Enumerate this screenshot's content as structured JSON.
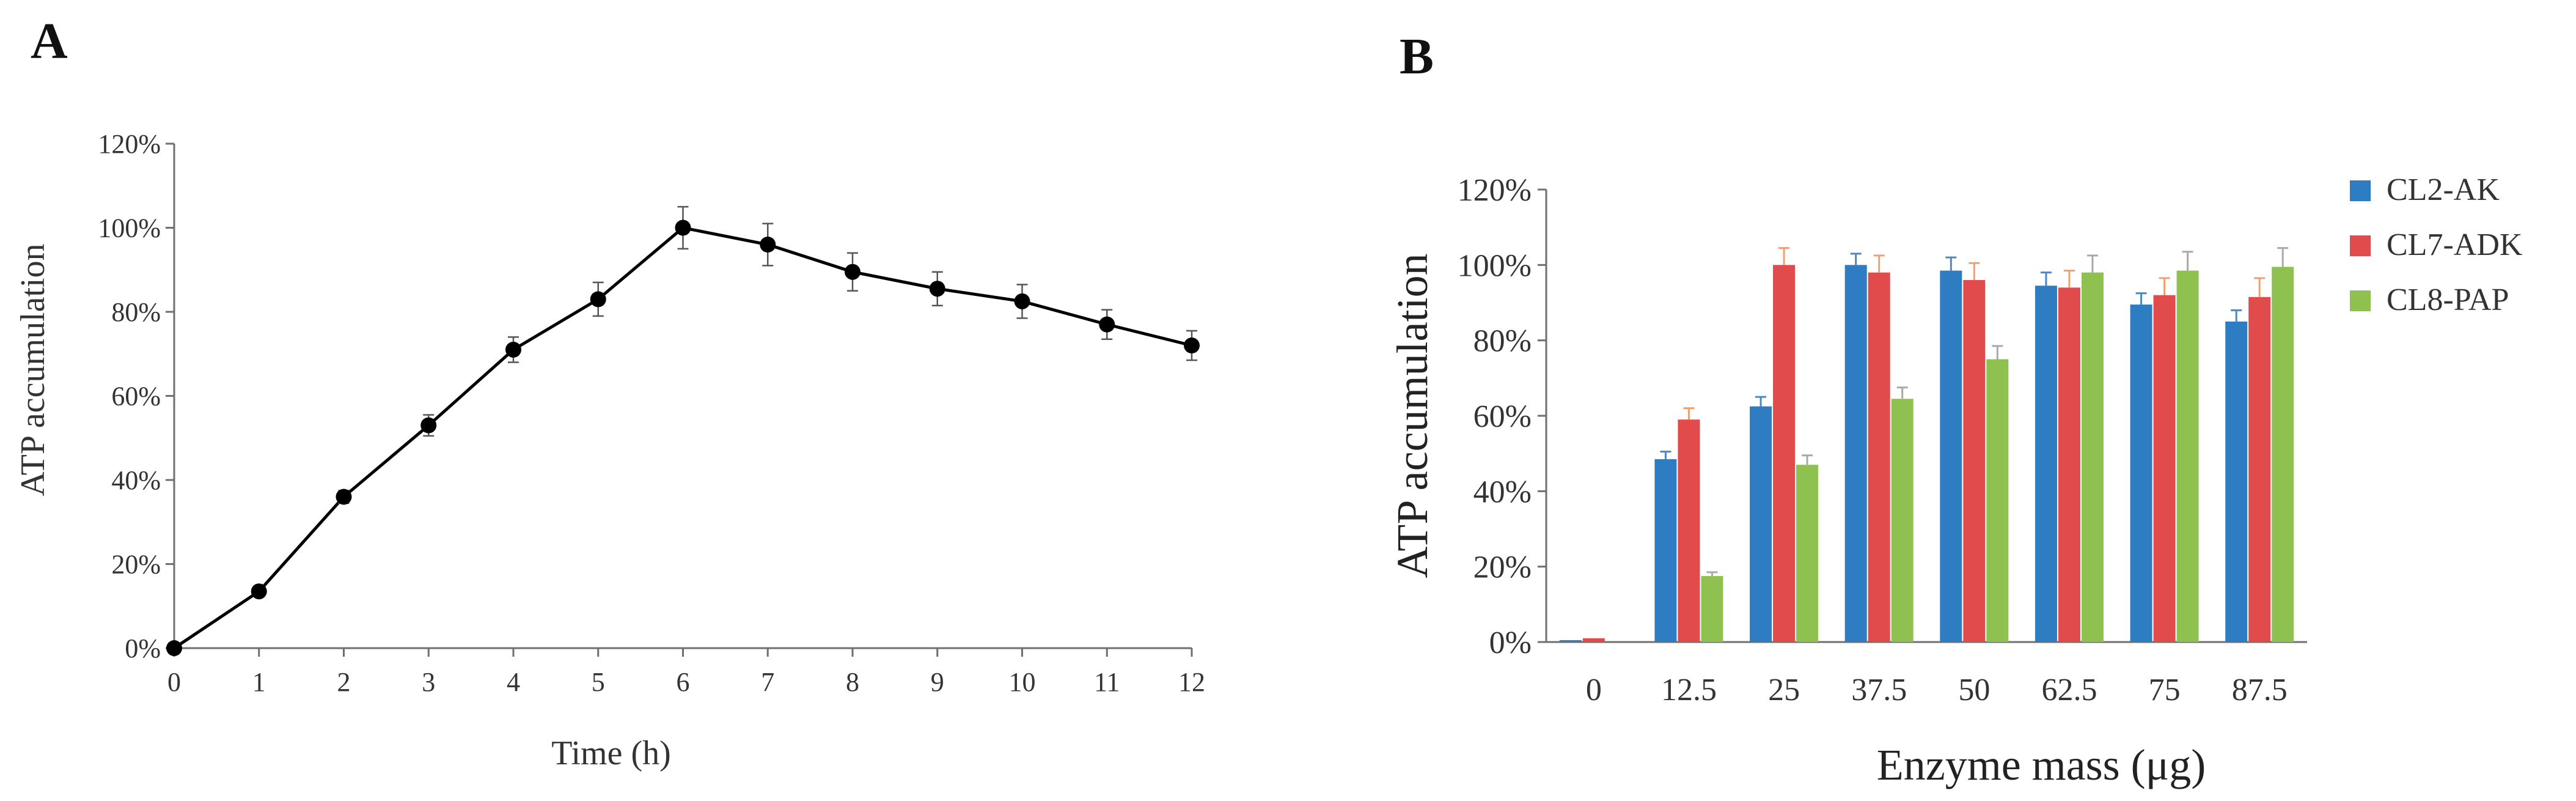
{
  "colors": {
    "line": "#000000",
    "axis": "#6f6f6f",
    "CL2-AK": "#2e7dc3",
    "CL7-ADK": "#e24b4b",
    "CL8-PAP": "#8fc150",
    "err_CL2-AK": "#4f87c0",
    "err_CL7-ADK": "#f0a070",
    "err_CL8-PAP": "#a9a9a9"
  },
  "chart_data": [
    {
      "panel": "A",
      "type": "line",
      "title": "",
      "xlabel": "Time (h)",
      "ylabel": "ATP accumulation",
      "x": [
        0,
        1,
        2,
        3,
        4,
        5,
        6,
        7,
        8,
        9,
        10,
        11,
        12
      ],
      "x_tick_labels": [
        "0",
        "1",
        "2",
        "3",
        "4",
        "5",
        "6",
        "7",
        "8",
        "9",
        "10",
        "11",
        "12"
      ],
      "xlim": [
        0,
        12
      ],
      "ylim": [
        0,
        120
      ],
      "y_ticks": [
        0,
        20,
        40,
        60,
        80,
        100,
        120
      ],
      "y_tick_labels": [
        "0%",
        "20%",
        "40%",
        "60%",
        "80%",
        "100%",
        "120%"
      ],
      "grid": false,
      "series": [
        {
          "name": "ATP accumulation",
          "values": [
            0,
            13.5,
            36,
            53,
            71,
            83,
            100,
            96,
            89.5,
            85.5,
            82.5,
            77,
            72
          ],
          "errors": [
            0,
            1,
            1.5,
            2.5,
            3,
            4,
            5,
            5,
            4.5,
            4,
            4,
            3.5,
            3.5
          ]
        }
      ]
    },
    {
      "panel": "B",
      "type": "bar",
      "title": "",
      "xlabel": "Enzyme mass (μg)",
      "ylabel": "ATP accumulation",
      "categories": [
        "0",
        "12.5",
        "25",
        "37.5",
        "50",
        "62.5",
        "75",
        "87.5"
      ],
      "ylim": [
        0,
        120
      ],
      "y_ticks": [
        0,
        20,
        40,
        60,
        80,
        100,
        120
      ],
      "y_tick_labels": [
        "0%",
        "20%",
        "40%",
        "60%",
        "80%",
        "100%",
        "120%"
      ],
      "grid": false,
      "legend": "right",
      "series": [
        {
          "name": "CL2-AK",
          "values": [
            0.5,
            48.5,
            62.5,
            100,
            98.5,
            94.5,
            89.5,
            85
          ],
          "errors": [
            0,
            2,
            2.5,
            3,
            3.5,
            3.5,
            3,
            3
          ]
        },
        {
          "name": "CL7-ADK",
          "values": [
            1,
            59,
            100,
            98,
            96,
            94,
            92,
            91.5
          ],
          "errors": [
            0,
            3,
            4.5,
            4.5,
            4.5,
            4.5,
            4.5,
            5
          ]
        },
        {
          "name": "CL8-PAP",
          "values": [
            0,
            17.5,
            47,
            64.5,
            75,
            98,
            98.5,
            99.5
          ],
          "errors": [
            0,
            1,
            2.5,
            3,
            3.5,
            4.5,
            5,
            5
          ]
        }
      ]
    }
  ]
}
